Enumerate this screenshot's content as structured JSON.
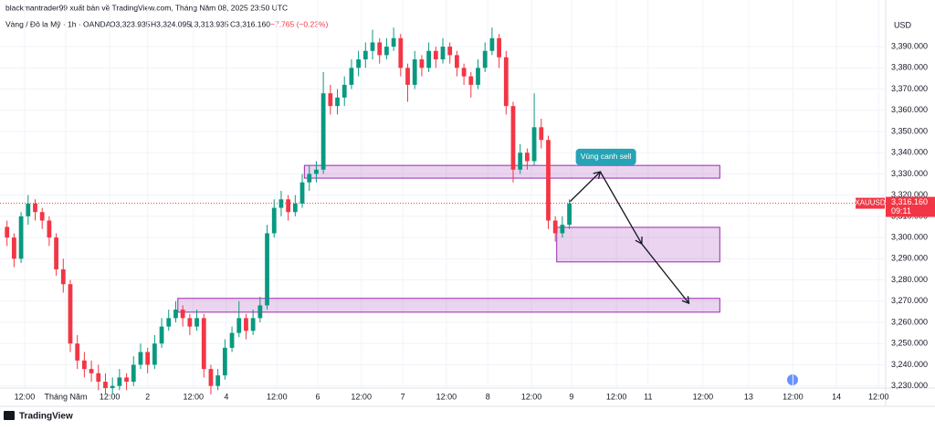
{
  "header": {
    "publisher": "blackmantrader99 xuất bản về TradingView.com, Tháng Năm 08, 2025 23:50 UTC",
    "symbol": "Vàng / Đô la Mỹ · 1h · OANDA",
    "open": "O3,323.935",
    "high": "H3,324.095",
    "low": "L3,313.935",
    "close": "C3,316.160",
    "change": "−7.765 (−0.23%)"
  },
  "footer": "TradingView",
  "chart_data": {
    "type": "candlestick",
    "currency": "USD",
    "up_color": "#089981",
    "down_color": "#f23645",
    "ohlc": [
      [
        3305,
        3308,
        3296,
        3300
      ],
      [
        3300,
        3302,
        3286,
        3290
      ],
      [
        3290,
        3312,
        3288,
        3310
      ],
      [
        3310,
        3320,
        3306,
        3316
      ],
      [
        3316,
        3318,
        3308,
        3312
      ],
      [
        3312,
        3314,
        3304,
        3308
      ],
      [
        3308,
        3310,
        3296,
        3300
      ],
      [
        3300,
        3302,
        3282,
        3285
      ],
      [
        3285,
        3290,
        3274,
        3278
      ],
      [
        3278,
        3280,
        3246,
        3250
      ],
      [
        3250,
        3254,
        3238,
        3242
      ],
      [
        3242,
        3246,
        3234,
        3238
      ],
      [
        3238,
        3242,
        3232,
        3236
      ],
      [
        3236,
        3240,
        3228,
        3232
      ],
      [
        3232,
        3236,
        3226,
        3229
      ],
      [
        3229,
        3234,
        3226,
        3230
      ],
      [
        3230,
        3238,
        3228,
        3234
      ],
      [
        3234,
        3236,
        3228,
        3232
      ],
      [
        3232,
        3244,
        3230,
        3240
      ],
      [
        3240,
        3250,
        3238,
        3246
      ],
      [
        3246,
        3248,
        3236,
        3240
      ],
      [
        3240,
        3254,
        3238,
        3250
      ],
      [
        3250,
        3262,
        3248,
        3258
      ],
      [
        3258,
        3266,
        3256,
        3262
      ],
      [
        3262,
        3270,
        3260,
        3266
      ],
      [
        3266,
        3268,
        3258,
        3262
      ],
      [
        3262,
        3264,
        3254,
        3258
      ],
      [
        3258,
        3266,
        3256,
        3262
      ],
      [
        3262,
        3264,
        3234,
        3238
      ],
      [
        3238,
        3240,
        3226,
        3230
      ],
      [
        3230,
        3238,
        3228,
        3235
      ],
      [
        3235,
        3252,
        3233,
        3248
      ],
      [
        3248,
        3258,
        3246,
        3255
      ],
      [
        3255,
        3270,
        3253,
        3262
      ],
      [
        3262,
        3264,
        3252,
        3256
      ],
      [
        3256,
        3266,
        3254,
        3262
      ],
      [
        3262,
        3272,
        3260,
        3268
      ],
      [
        3268,
        3306,
        3266,
        3302
      ],
      [
        3302,
        3318,
        3300,
        3314
      ],
      [
        3314,
        3322,
        3310,
        3318
      ],
      [
        3318,
        3320,
        3308,
        3312
      ],
      [
        3312,
        3320,
        3310,
        3316
      ],
      [
        3316,
        3330,
        3314,
        3326
      ],
      [
        3326,
        3334,
        3322,
        3330
      ],
      [
        3330,
        3336,
        3326,
        3332
      ],
      [
        3332,
        3378,
        3330,
        3368
      ],
      [
        3368,
        3372,
        3358,
        3362
      ],
      [
        3362,
        3370,
        3358,
        3366
      ],
      [
        3366,
        3376,
        3362,
        3372
      ],
      [
        3372,
        3384,
        3370,
        3380
      ],
      [
        3380,
        3388,
        3376,
        3384
      ],
      [
        3384,
        3392,
        3380,
        3388
      ],
      [
        3388,
        3398,
        3384,
        3392
      ],
      [
        3392,
        3394,
        3382,
        3386
      ],
      [
        3386,
        3394,
        3384,
        3390
      ],
      [
        3390,
        3399,
        3388,
        3394
      ],
      [
        3394,
        3396,
        3376,
        3380
      ],
      [
        3380,
        3382,
        3364,
        3372
      ],
      [
        3372,
        3388,
        3370,
        3384
      ],
      [
        3384,
        3386,
        3376,
        3380
      ],
      [
        3380,
        3392,
        3378,
        3388
      ],
      [
        3388,
        3390,
        3380,
        3384
      ],
      [
        3384,
        3394,
        3382,
        3390
      ],
      [
        3390,
        3392,
        3382,
        3386
      ],
      [
        3386,
        3388,
        3376,
        3380
      ],
      [
        3380,
        3382,
        3372,
        3376
      ],
      [
        3376,
        3378,
        3366,
        3372
      ],
      [
        3372,
        3384,
        3370,
        3380
      ],
      [
        3380,
        3392,
        3378,
        3388
      ],
      [
        3388,
        3399,
        3386,
        3394
      ],
      [
        3394,
        3396,
        3380,
        3385
      ],
      [
        3385,
        3388,
        3358,
        3362
      ],
      [
        3362,
        3364,
        3326,
        3332
      ],
      [
        3332,
        3344,
        3330,
        3340
      ],
      [
        3340,
        3342,
        3332,
        3336
      ],
      [
        3336,
        3368,
        3334,
        3352
      ],
      [
        3352,
        3356,
        3342,
        3346
      ],
      [
        3346,
        3348,
        3304,
        3308
      ],
      [
        3308,
        3310,
        3298,
        3302
      ],
      [
        3302,
        3310,
        3300,
        3306
      ],
      [
        3306,
        3318,
        3304,
        3316
      ]
    ],
    "xlim": [
      -1,
      125
    ],
    "ylim": [
      3229,
      3412
    ],
    "xticks": [
      {
        "value": 2.5,
        "label": "12:00"
      },
      {
        "value": 8.35,
        "label": "Tháng Năm"
      },
      {
        "value": 14.6,
        "label": "12:00"
      },
      {
        "value": 20,
        "label": "2"
      },
      {
        "value": 26.5,
        "label": "12:00"
      },
      {
        "value": 31.2,
        "label": "4"
      },
      {
        "value": 38.4,
        "label": "12:00"
      },
      {
        "value": 44.2,
        "label": "6"
      },
      {
        "value": 50.4,
        "label": "12:00"
      },
      {
        "value": 56.3,
        "label": "7"
      },
      {
        "value": 62.5,
        "label": "12:00"
      },
      {
        "value": 68.4,
        "label": "8"
      },
      {
        "value": 74.6,
        "label": "12:00"
      },
      {
        "value": 80.3,
        "label": "9"
      },
      {
        "value": 86.7,
        "label": "12:00"
      },
      {
        "value": 91.2,
        "label": "11"
      },
      {
        "value": 99,
        "label": "12:00"
      },
      {
        "value": 105.5,
        "label": "13"
      },
      {
        "value": 111.8,
        "label": "12:00"
      },
      {
        "value": 118,
        "label": "14"
      },
      {
        "value": 124,
        "label": "12:00"
      }
    ],
    "yticks": [
      {
        "value": 3230,
        "label": "3,230.000"
      },
      {
        "value": 3240,
        "label": "3,240.000"
      },
      {
        "value": 3250,
        "label": "3,250.000"
      },
      {
        "value": 3260,
        "label": "3,260.000"
      },
      {
        "value": 3270,
        "label": "3,270.000"
      },
      {
        "value": 3280,
        "label": "3,280.000"
      },
      {
        "value": 3290,
        "label": "3,290.000"
      },
      {
        "value": 3300,
        "label": "3,300.000"
      },
      {
        "value": 3310,
        "label": "3,310.000"
      },
      {
        "value": 3320,
        "label": "3,320.000"
      },
      {
        "value": 3330,
        "label": "3,330.000"
      },
      {
        "value": 3340,
        "label": "3,340.000"
      },
      {
        "value": 3350,
        "label": "3,350.000"
      },
      {
        "value": 3360,
        "label": "3,360.000"
      },
      {
        "value": 3370,
        "label": "3,370.000"
      },
      {
        "value": 3380,
        "label": "3,380.000"
      },
      {
        "value": 3390,
        "label": "3,390.000"
      }
    ],
    "last_price": {
      "symbol": "XAUUSD",
      "value": 3316.16,
      "label": "3,316.160",
      "countdown": "09:11"
    },
    "zones": [
      {
        "x": [
          42.3,
          101.4
        ],
        "y": [
          3328,
          3334
        ]
      },
      {
        "x": [
          78.2,
          101.4
        ],
        "y": [
          3288.5,
          3304.8
        ]
      },
      {
        "x": [
          24.3,
          101.4
        ],
        "y": [
          3264.8,
          3271.3
        ]
      }
    ],
    "path": {
      "x": [
        80.1,
        84.4,
        90.3,
        97
      ],
      "y": [
        3317,
        3331,
        3297,
        3269
      ]
    },
    "annotation": {
      "text": "Vùng canh sell",
      "x": 85.2,
      "y": 3338
    }
  }
}
